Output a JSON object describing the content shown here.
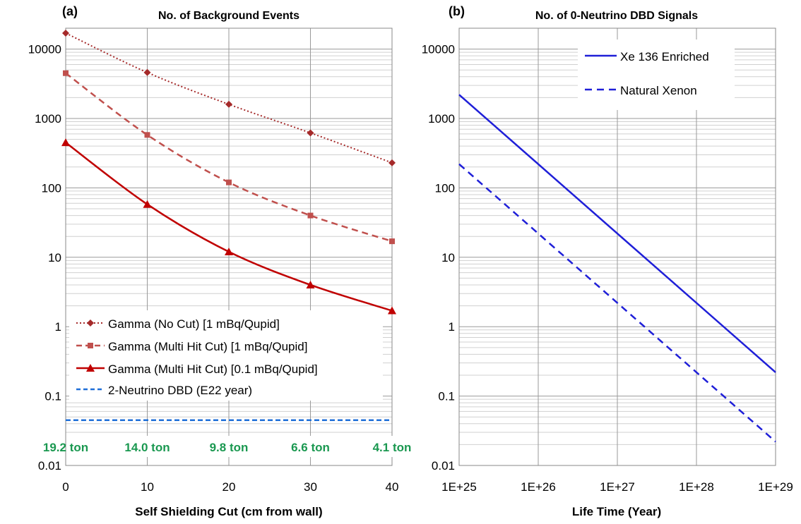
{
  "panels": {
    "a": {
      "tag": "(a)",
      "title": "No. of Background Events",
      "xlabel": "Self Shielding Cut (cm from wall)",
      "legend": [
        "Gamma (No Cut) [1 mBq/Qupid]",
        "Gamma (Multi Hit Cut) [1 mBq/Qupid]",
        "Gamma (Multi Hit Cut) [0.1 mBq/Qupid]",
        "2-Neutrino DBD (E22 year)"
      ],
      "mass_labels": [
        "19.2 ton",
        "14.0 ton",
        "9.8 ton",
        "6.6 ton",
        "4.1 ton"
      ]
    },
    "b": {
      "tag": "(b)",
      "title": "No. of 0-Neutrino DBD Signals",
      "xlabel": "Life Time (Year)",
      "legend": [
        "Xe 136 Enriched",
        "Natural Xenon"
      ]
    }
  },
  "chart_data": [
    {
      "type": "line",
      "title": "No. of Background Events",
      "xlabel": "Self Shielding Cut (cm from wall)",
      "ylabel": "",
      "x": [
        0,
        10,
        20,
        30,
        40
      ],
      "xlim": [
        0,
        40
      ],
      "xticks": [
        "0",
        "10",
        "20",
        "30",
        "40"
      ],
      "ylim": [
        0.01,
        20000
      ],
      "yscale": "log",
      "yticks": [
        "0.01",
        "0.1",
        "1",
        "10",
        "100",
        "1000",
        "10000"
      ],
      "grid": true,
      "legend_position": "bottom-left",
      "series": [
        {
          "name": "Gamma (No Cut) [1 mBq/Qupid]",
          "values": [
            17000,
            4600,
            1600,
            620,
            230
          ],
          "color": "#a52a2a",
          "marker": "diamond",
          "line": "dotted"
        },
        {
          "name": "Gamma (Multi Hit Cut) [1 mBq/Qupid]",
          "values": [
            4500,
            580,
            120,
            40,
            17
          ],
          "color": "#c0504d",
          "marker": "square",
          "line": "dashed"
        },
        {
          "name": "Gamma (Multi Hit Cut) [0.1 mBq/Qupid]",
          "values": [
            450,
            58,
            12,
            4,
            1.7
          ],
          "color": "#c00000",
          "marker": "triangle",
          "line": "solid"
        },
        {
          "name": "2-Neutrino DBD (E22 year)",
          "values": [
            0.045,
            0.045,
            0.045,
            0.045,
            0.045
          ],
          "color": "#1f6fd8",
          "marker": "none",
          "line": "dashed"
        }
      ],
      "annotations": [
        "19.2 ton",
        "14.0 ton",
        "9.8 ton",
        "6.6 ton",
        "4.1 ton"
      ]
    },
    {
      "type": "line",
      "title": "No. of 0-Neutrino DBD Signals",
      "xlabel": "Life Time (Year)",
      "ylabel": "",
      "xscale": "log",
      "x": [
        1e+25,
        1e+29
      ],
      "xlim": [
        1e+25,
        1e+29
      ],
      "xticks": [
        "1E+25",
        "1E+26",
        "1E+27",
        "1E+28",
        "1E+29"
      ],
      "ylim": [
        0.01,
        20000
      ],
      "yscale": "log",
      "yticks": [
        "0.01",
        "0.1",
        "1",
        "10",
        "100",
        "1000",
        "10000"
      ],
      "grid": true,
      "legend_position": "top-right",
      "series": [
        {
          "name": "Xe 136 Enriched",
          "values": [
            2200,
            0.22
          ],
          "color": "#1f1fd8",
          "line": "solid"
        },
        {
          "name": "Natural Xenon",
          "values": [
            220,
            0.022
          ],
          "color": "#1f1fd8",
          "line": "dashed"
        }
      ]
    }
  ]
}
